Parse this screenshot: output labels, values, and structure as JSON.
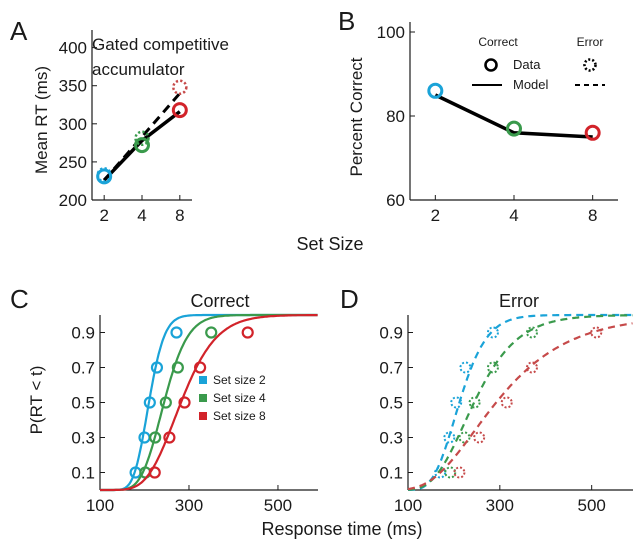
{
  "panel_letters": {
    "a": "A",
    "b": "B",
    "c": "C",
    "d": "D"
  },
  "shared_labels": {
    "set_size_xlabel": "Set Size",
    "response_time_xlabel": "Response time (ms)",
    "cdf_ylabel": "P(RT < t)"
  },
  "legend_b": {
    "correct_header": "Correct",
    "error_header": "Error",
    "data_label": "Data",
    "model_label": "Model"
  },
  "legend_c": {
    "entries": [
      "Set size 2",
      "Set size 4",
      "Set size 8"
    ]
  },
  "colors": {
    "set2": "#1aa3d8",
    "set4": "#3a9a4c",
    "set8": "#d2232a",
    "set8_error": "#c64a4a",
    "model": "#000000",
    "axis": "#1a1a1a"
  },
  "chart_data": [
    {
      "panel": "A",
      "type": "line",
      "annotation_lines": [
        "Gated competitive",
        "accumulator"
      ],
      "xlabel": "",
      "ylabel": "Mean RT (ms)",
      "x_ticks": [
        2,
        4,
        8
      ],
      "y_ticks": [
        200,
        250,
        300,
        350,
        400
      ],
      "x_log_scale": true,
      "xlim": [
        1.6,
        10
      ],
      "ylim": [
        200,
        410
      ],
      "data_correct": {
        "x": [
          2,
          4,
          8
        ],
        "y": [
          231,
          272,
          318
        ]
      },
      "data_error": {
        "x": [
          2,
          4,
          8
        ],
        "y": [
          233,
          281,
          348
        ]
      },
      "model_correct": {
        "x": [
          2,
          4,
          8
        ],
        "y": [
          226,
          278,
          316
        ]
      },
      "model_error": {
        "x": [
          2,
          4,
          8
        ],
        "y": [
          226,
          283,
          340
        ]
      }
    },
    {
      "panel": "B",
      "type": "line",
      "xlabel": "",
      "ylabel": "Percent Correct",
      "x_ticks": [
        2,
        4,
        8
      ],
      "y_ticks": [
        60,
        80,
        100
      ],
      "x_log_scale": true,
      "xlim": [
        1.6,
        10
      ],
      "ylim": [
        60,
        100
      ],
      "data_correct": {
        "x": [
          2,
          4,
          8
        ],
        "y": [
          86,
          77,
          76
        ]
      },
      "model_correct": {
        "x": [
          2,
          4,
          8
        ],
        "y": [
          85,
          76,
          75
        ]
      }
    },
    {
      "panel": "C",
      "type": "line",
      "title": "Correct",
      "xlabel": "Response time (ms)",
      "ylabel": "P(RT < t)",
      "x_ticks": [
        100,
        300,
        500
      ],
      "y_ticks": [
        0.1,
        0.3,
        0.5,
        0.7,
        0.9
      ],
      "xlim": [
        100,
        590
      ],
      "ylim": [
        0,
        1.0
      ],
      "quantile_levels": [
        0.1,
        0.3,
        0.5,
        0.7,
        0.9
      ],
      "series": [
        {
          "name": "Set size 2",
          "data_x": [
            180,
            200,
            212,
            228,
            272
          ],
          "model_median": 210,
          "model_sigma": 0.13
        },
        {
          "name": "Set size 4",
          "data_x": [
            202,
            224,
            248,
            275,
            350
          ],
          "model_median": 244,
          "model_sigma": 0.17
        },
        {
          "name": "Set size 8",
          "data_x": [
            223,
            256,
            290,
            325,
            432
          ],
          "model_median": 282,
          "model_sigma": 0.22
        }
      ]
    },
    {
      "panel": "D",
      "type": "line",
      "title": "Error",
      "xlabel": "Response time (ms)",
      "ylabel": "",
      "x_ticks": [
        100,
        300,
        500
      ],
      "y_ticks": [
        0.1,
        0.3,
        0.5,
        0.7,
        0.9
      ],
      "xlim": [
        100,
        590
      ],
      "ylim": [
        0,
        1.0
      ],
      "quantile_levels": [
        0.1,
        0.3,
        0.5,
        0.7,
        0.9
      ],
      "series": [
        {
          "name": "Set size 2",
          "data_x": [
            170,
            190,
            205,
            225,
            285
          ],
          "model_median": 212,
          "model_sigma": 0.22
        },
        {
          "name": "Set size 4",
          "data_x": [
            192,
            223,
            245,
            285,
            370
          ],
          "model_median": 244,
          "model_sigma": 0.3
        },
        {
          "name": "Set size 8",
          "data_x": [
            212,
            255,
            315,
            370,
            510
          ],
          "model_median": 292,
          "model_sigma": 0.42
        }
      ]
    }
  ]
}
